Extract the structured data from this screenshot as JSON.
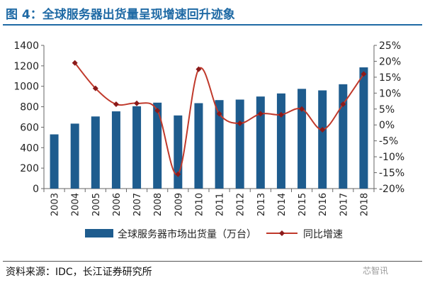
{
  "figure": {
    "title": "图 4：全球服务器出货量呈现增速回升迹象",
    "source": "资料来源：IDC，长江证券研究所",
    "watermark": "芯智讯"
  },
  "colors": {
    "title": "#1f6aa5",
    "bar": "#1e5c8e",
    "line": "#c0392b",
    "marker": "#8b1a1a",
    "axis": "#666666"
  },
  "chart_data": {
    "type": "bar",
    "categories": [
      "2003",
      "2004",
      "2005",
      "2006",
      "2007",
      "2008",
      "2009",
      "2010",
      "2011",
      "2012",
      "2013",
      "2014",
      "2015",
      "2016",
      "2017",
      "2018"
    ],
    "series": [
      {
        "name": "全球服务器市场出货量（万台）",
        "type": "bar",
        "axis": "left",
        "values": [
          530,
          635,
          705,
          755,
          805,
          840,
          715,
          835,
          865,
          870,
          900,
          930,
          975,
          960,
          1020,
          1185
        ]
      },
      {
        "name": "同比增速",
        "type": "line",
        "axis": "right",
        "values": [
          null,
          19.5,
          11.5,
          6.5,
          6.8,
          4.5,
          -15.5,
          17.5,
          3.5,
          0.5,
          3.5,
          3.2,
          5.0,
          -1.5,
          6.5,
          16.0
        ]
      }
    ],
    "y_left": {
      "ylim": [
        0,
        1400
      ],
      "ticks": [
        0,
        200,
        400,
        600,
        800,
        1000,
        1200,
        1400
      ]
    },
    "y_right": {
      "ylim": [
        -20,
        25
      ],
      "ticks": [
        "-20%",
        "-15%",
        "-10%",
        "-5%",
        "0%",
        "5%",
        "10%",
        "15%",
        "20%",
        "25%"
      ]
    },
    "legend": {
      "position": "bottom",
      "labels": [
        "全球服务器市场出货量（万台）",
        "同比增速"
      ]
    },
    "grid": false
  }
}
